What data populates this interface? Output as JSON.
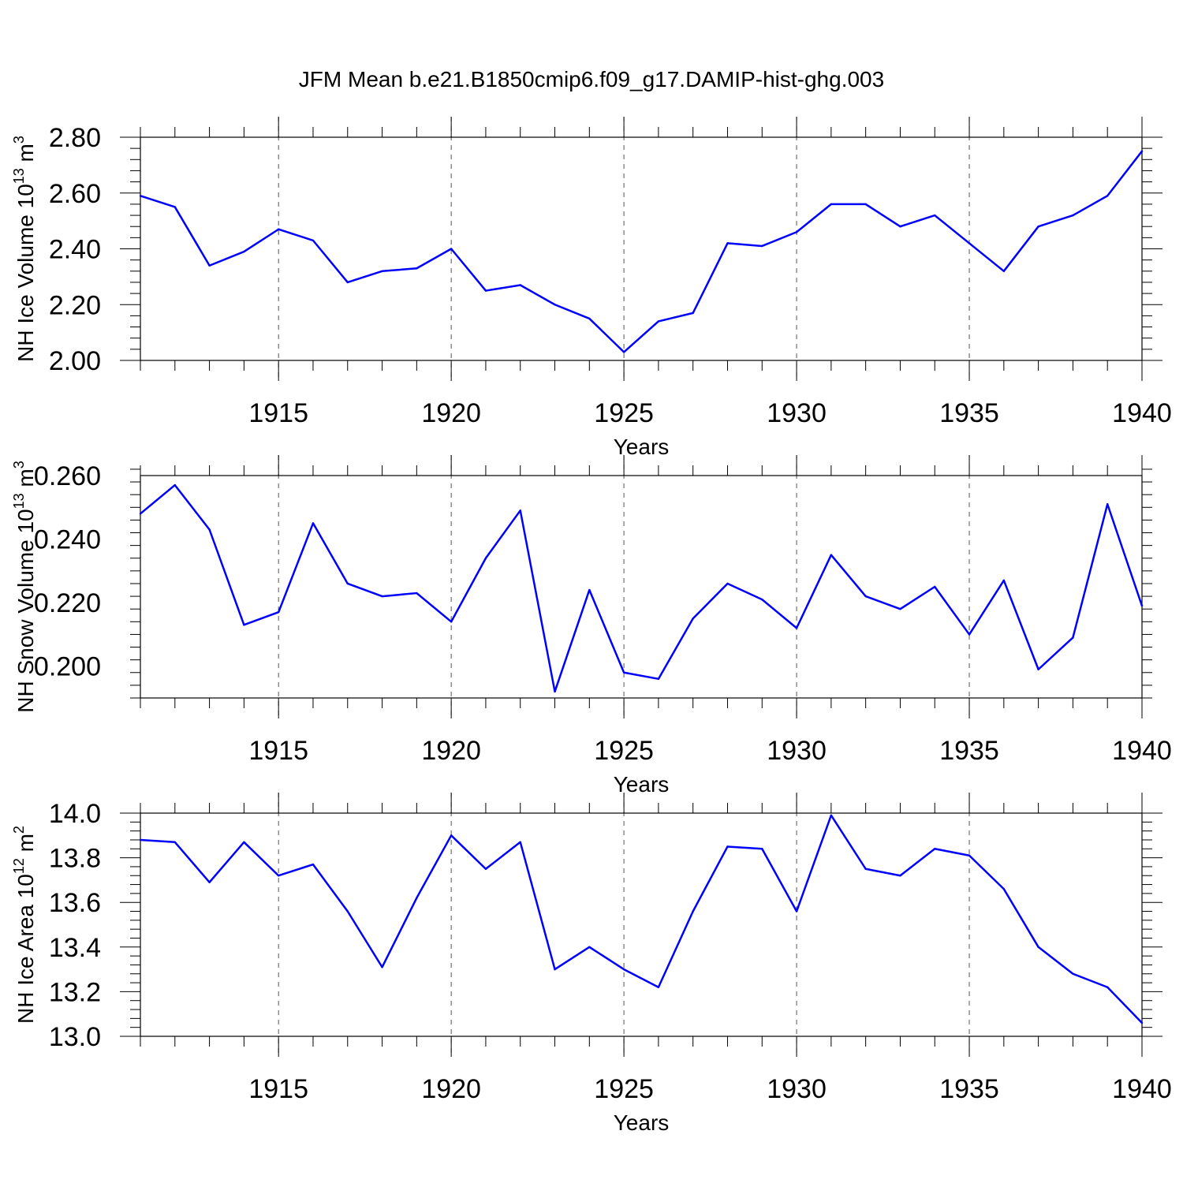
{
  "title": "JFM Mean b.e21.B1850cmip6.f09_g17.DAMIP-hist-ghg.003",
  "colors": {
    "series": "#0000ff",
    "axis": "#000000",
    "grid": "#555555"
  },
  "chart_data": [
    {
      "type": "line",
      "title": "",
      "xlabel": "Years",
      "ylabel": "NH Ice Volume 10",
      "ylabel_exp": "13",
      "ylabel_unit": " m",
      "ylabel_unit_exp": "3",
      "xlim": [
        1911,
        1940
      ],
      "ylim": [
        2.0,
        2.8
      ],
      "yticks": [
        2.0,
        2.2,
        2.4,
        2.6,
        2.8
      ],
      "ytick_labels": [
        "2.00",
        "2.20",
        "2.40",
        "2.60",
        "2.80"
      ],
      "xticks": [
        1915,
        1920,
        1925,
        1930,
        1935,
        1940
      ],
      "xtick_labels": [
        "1915",
        "1920",
        "1925",
        "1930",
        "1935",
        "1940"
      ],
      "grid": "vertical-dashed-at-major-x",
      "x": [
        1911,
        1912,
        1913,
        1914,
        1915,
        1916,
        1917,
        1918,
        1919,
        1920,
        1921,
        1922,
        1923,
        1924,
        1925,
        1926,
        1927,
        1928,
        1929,
        1930,
        1931,
        1932,
        1933,
        1934,
        1935,
        1936,
        1937,
        1938,
        1939,
        1940
      ],
      "series": [
        {
          "values": [
            2.59,
            2.55,
            2.34,
            2.39,
            2.47,
            2.43,
            2.28,
            2.32,
            2.33,
            2.4,
            2.25,
            2.27,
            2.2,
            2.15,
            2.03,
            2.14,
            2.17,
            2.42,
            2.41,
            2.46,
            2.56,
            2.56,
            2.48,
            2.52,
            2.42,
            2.32,
            2.48,
            2.52,
            2.59,
            2.75
          ]
        }
      ]
    },
    {
      "type": "line",
      "title": "",
      "xlabel": "Years",
      "ylabel": "NH Snow Volume 10",
      "ylabel_exp": "13",
      "ylabel_unit": " m",
      "ylabel_unit_exp": "3",
      "xlim": [
        1911,
        1940
      ],
      "ylim": [
        0.19,
        0.26
      ],
      "yticks": [
        0.2,
        0.22,
        0.24,
        0.26
      ],
      "ytick_labels": [
        "0.200",
        "0.220",
        "0.240",
        "0.260"
      ],
      "xticks": [
        1915,
        1920,
        1925,
        1930,
        1935,
        1940
      ],
      "xtick_labels": [
        "1915",
        "1920",
        "1925",
        "1930",
        "1935",
        "1940"
      ],
      "grid": "vertical-dashed-at-major-x",
      "x": [
        1911,
        1912,
        1913,
        1914,
        1915,
        1916,
        1917,
        1918,
        1919,
        1920,
        1921,
        1922,
        1923,
        1924,
        1925,
        1926,
        1927,
        1928,
        1929,
        1930,
        1931,
        1932,
        1933,
        1934,
        1935,
        1936,
        1937,
        1938,
        1939,
        1940
      ],
      "series": [
        {
          "values": [
            0.248,
            0.257,
            0.243,
            0.213,
            0.217,
            0.245,
            0.226,
            0.222,
            0.223,
            0.214,
            0.234,
            0.249,
            0.192,
            0.224,
            0.198,
            0.196,
            0.215,
            0.226,
            0.221,
            0.212,
            0.235,
            0.222,
            0.218,
            0.225,
            0.21,
            0.227,
            0.199,
            0.209,
            0.251,
            0.219
          ]
        }
      ]
    },
    {
      "type": "line",
      "title": "",
      "xlabel": "Years",
      "ylabel": "NH Ice Area 10",
      "ylabel_exp": "12",
      "ylabel_unit": " m",
      "ylabel_unit_exp": "2",
      "xlim": [
        1911,
        1940
      ],
      "ylim": [
        13.0,
        14.0
      ],
      "yticks": [
        13.0,
        13.2,
        13.4,
        13.6,
        13.8,
        14.0
      ],
      "ytick_labels": [
        "13.0",
        "13.2",
        "13.4",
        "13.6",
        "13.8",
        "14.0"
      ],
      "xticks": [
        1915,
        1920,
        1925,
        1930,
        1935,
        1940
      ],
      "xtick_labels": [
        "1915",
        "1920",
        "1925",
        "1930",
        "1935",
        "1940"
      ],
      "grid": "vertical-dashed-at-major-x",
      "x": [
        1911,
        1912,
        1913,
        1914,
        1915,
        1916,
        1917,
        1918,
        1919,
        1920,
        1921,
        1922,
        1923,
        1924,
        1925,
        1926,
        1927,
        1928,
        1929,
        1930,
        1931,
        1932,
        1933,
        1934,
        1935,
        1936,
        1937,
        1938,
        1939,
        1940
      ],
      "series": [
        {
          "values": [
            13.88,
            13.87,
            13.69,
            13.87,
            13.72,
            13.77,
            13.56,
            13.31,
            13.62,
            13.9,
            13.75,
            13.87,
            13.3,
            13.4,
            13.3,
            13.22,
            13.56,
            13.85,
            13.84,
            13.56,
            13.99,
            13.75,
            13.72,
            13.84,
            13.81,
            13.66,
            13.4,
            13.28,
            13.22,
            13.06
          ]
        }
      ]
    }
  ]
}
